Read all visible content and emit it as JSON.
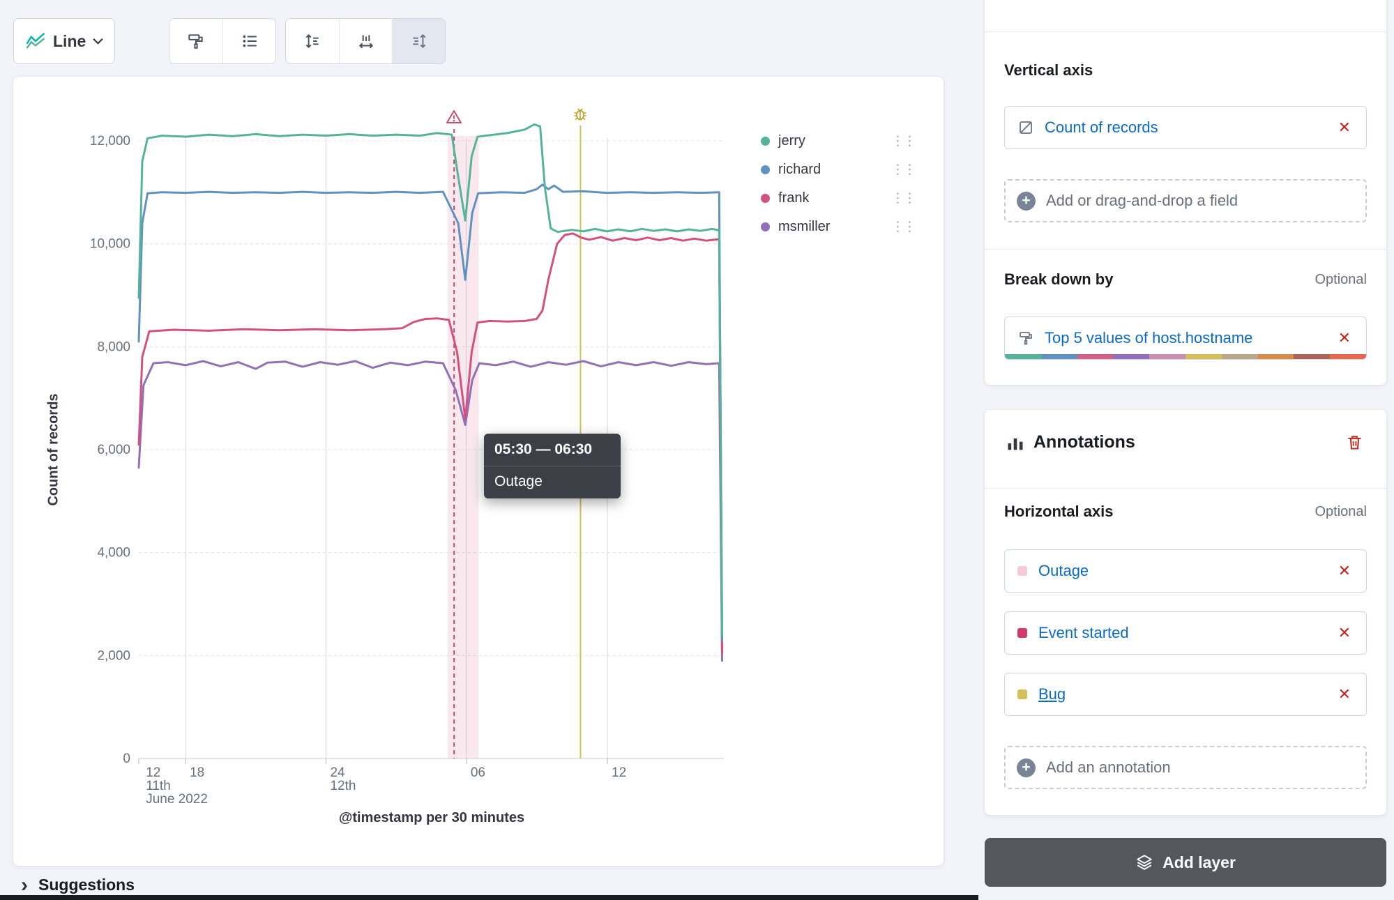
{
  "toolbar": {
    "chart_type": "Line"
  },
  "chart": {
    "tooltip": {
      "range": "05:30 — 06:30",
      "label": "Outage"
    }
  },
  "chart_data": {
    "type": "line",
    "title": "",
    "xlabel": "@timestamp per 30 minutes",
    "ylabel": "Count of records",
    "ylim": [
      0,
      12000
    ],
    "x_range_note": "x is percent 0-100 across the visible time window, 11 June 2022 ~12:00 through 12 June 2022 afternoon, bucketed per 30 minutes",
    "grid": true,
    "legend_position": "right",
    "y_ticks": [
      {
        "v": 0,
        "label": "0"
      },
      {
        "v": 2000,
        "label": "2,000"
      },
      {
        "v": 4000,
        "label": "4,000"
      },
      {
        "v": 6000,
        "label": "6,000"
      },
      {
        "v": 8000,
        "label": "8,000"
      },
      {
        "v": 10000,
        "label": "10,000"
      },
      {
        "v": 12000,
        "label": "12,000"
      }
    ],
    "x_ticks": [
      {
        "x": 0.5,
        "label": "12",
        "sub": [
          "11th",
          "June 2022"
        ]
      },
      {
        "x": 8.0,
        "label": "18",
        "sub": []
      },
      {
        "x": 32.0,
        "label": "24",
        "sub": [
          "12th"
        ]
      },
      {
        "x": 56.0,
        "label": "06",
        "sub": []
      },
      {
        "x": 80.1,
        "label": "12",
        "sub": []
      }
    ],
    "x_gridlines": [
      8.0,
      32.0,
      56.0,
      80.1
    ],
    "annotations": {
      "band": {
        "name": "Outage",
        "x0": 52.8,
        "x1": 58.1,
        "color": "#D36086",
        "opacity": 0.14
      },
      "lines": [
        {
          "name": "Event started",
          "x": 53.9,
          "color": "#b54a73",
          "dashed": true,
          "icon": "warning"
        },
        {
          "name": "Bug",
          "x": 75.5,
          "color": "#D6BF57",
          "dashed": false,
          "icon": "bug"
        }
      ]
    },
    "series": [
      {
        "name": "msmiller",
        "color": "#9170B8",
        "points": [
          [
            0,
            5650
          ],
          [
            0.8,
            7250
          ],
          [
            2.5,
            7680
          ],
          [
            5,
            7700
          ],
          [
            8,
            7640
          ],
          [
            11,
            7720
          ],
          [
            14,
            7620
          ],
          [
            17,
            7700
          ],
          [
            20,
            7570
          ],
          [
            22,
            7690
          ],
          [
            25,
            7710
          ],
          [
            28,
            7610
          ],
          [
            31,
            7700
          ],
          [
            34,
            7650
          ],
          [
            37,
            7720
          ],
          [
            40,
            7590
          ],
          [
            43,
            7690
          ],
          [
            46,
            7640
          ],
          [
            49,
            7710
          ],
          [
            52,
            7680
          ],
          [
            54.2,
            7150
          ],
          [
            55.8,
            6480
          ],
          [
            57,
            7350
          ],
          [
            58.2,
            7680
          ],
          [
            61,
            7640
          ],
          [
            64,
            7710
          ],
          [
            67,
            7610
          ],
          [
            70,
            7700
          ],
          [
            73,
            7650
          ],
          [
            76,
            7720
          ],
          [
            79,
            7620
          ],
          [
            82,
            7700
          ],
          [
            85,
            7640
          ],
          [
            88,
            7700
          ],
          [
            91,
            7630
          ],
          [
            94,
            7700
          ],
          [
            97,
            7660
          ],
          [
            99.2,
            7680
          ],
          [
            99.7,
            1900
          ]
        ]
      },
      {
        "name": "frank",
        "color": "#D2517E",
        "points": [
          [
            0,
            6100
          ],
          [
            0.6,
            7800
          ],
          [
            1.8,
            8300
          ],
          [
            6,
            8330
          ],
          [
            12,
            8310
          ],
          [
            18,
            8340
          ],
          [
            24,
            8320
          ],
          [
            30,
            8340
          ],
          [
            36,
            8320
          ],
          [
            42,
            8340
          ],
          [
            45,
            8360
          ],
          [
            47,
            8480
          ],
          [
            49,
            8540
          ],
          [
            51,
            8550
          ],
          [
            53,
            8520
          ],
          [
            54.4,
            7900
          ],
          [
            55.8,
            6600
          ],
          [
            56.9,
            7900
          ],
          [
            57.9,
            8470
          ],
          [
            60,
            8500
          ],
          [
            63,
            8490
          ],
          [
            66,
            8500
          ],
          [
            68,
            8540
          ],
          [
            69,
            8700
          ],
          [
            70,
            9300
          ],
          [
            71.5,
            10000
          ],
          [
            72.8,
            10170
          ],
          [
            74.2,
            10200
          ],
          [
            75.6,
            10120
          ],
          [
            77,
            10080
          ],
          [
            79,
            10130
          ],
          [
            81,
            10060
          ],
          [
            83,
            10110
          ],
          [
            85,
            10070
          ],
          [
            87,
            10120
          ],
          [
            89,
            10070
          ],
          [
            91,
            10110
          ],
          [
            93,
            10060
          ],
          [
            95,
            10100
          ],
          [
            97,
            10060
          ],
          [
            99.2,
            10090
          ],
          [
            99.7,
            2050
          ]
        ]
      },
      {
        "name": "richard",
        "color": "#6092C0",
        "points": [
          [
            0,
            8100
          ],
          [
            0.6,
            10400
          ],
          [
            1.5,
            10980
          ],
          [
            4,
            11000
          ],
          [
            8,
            10990
          ],
          [
            12,
            11010
          ],
          [
            16,
            10990
          ],
          [
            20,
            11000
          ],
          [
            24,
            10990
          ],
          [
            28,
            11010
          ],
          [
            32,
            10990
          ],
          [
            36,
            11000
          ],
          [
            40,
            10990
          ],
          [
            44,
            11010
          ],
          [
            48,
            10990
          ],
          [
            52,
            11010
          ],
          [
            54.6,
            10400
          ],
          [
            55.8,
            9300
          ],
          [
            57,
            10600
          ],
          [
            58,
            10980
          ],
          [
            62,
            11000
          ],
          [
            66,
            10990
          ],
          [
            68,
            11060
          ],
          [
            69,
            11150
          ],
          [
            70,
            11060
          ],
          [
            71,
            11130
          ],
          [
            72.5,
            11010
          ],
          [
            76,
            11020
          ],
          [
            80,
            10990
          ],
          [
            84,
            11000
          ],
          [
            88,
            10990
          ],
          [
            92,
            11000
          ],
          [
            96,
            10990
          ],
          [
            99.2,
            11000
          ],
          [
            99.7,
            2300
          ]
        ]
      },
      {
        "name": "jerry",
        "color": "#54B399",
        "points": [
          [
            0,
            8950
          ],
          [
            0.6,
            11600
          ],
          [
            1.5,
            12050
          ],
          [
            4,
            12100
          ],
          [
            8,
            12080
          ],
          [
            12,
            12120
          ],
          [
            16,
            12090
          ],
          [
            20,
            12130
          ],
          [
            24,
            12090
          ],
          [
            28,
            12120
          ],
          [
            32,
            12100
          ],
          [
            36,
            12130
          ],
          [
            40,
            12100
          ],
          [
            44,
            12120
          ],
          [
            48,
            12100
          ],
          [
            51,
            12150
          ],
          [
            53.5,
            12120
          ],
          [
            54.6,
            11300
          ],
          [
            55.8,
            10450
          ],
          [
            56.9,
            11700
          ],
          [
            57.9,
            12080
          ],
          [
            60,
            12110
          ],
          [
            63,
            12150
          ],
          [
            66,
            12220
          ],
          [
            67.6,
            12320
          ],
          [
            68.6,
            12280
          ],
          [
            69.4,
            11100
          ],
          [
            70.4,
            10300
          ],
          [
            71.6,
            10230
          ],
          [
            74,
            10270
          ],
          [
            76,
            10240
          ],
          [
            78,
            10290
          ],
          [
            80,
            10240
          ],
          [
            82,
            10280
          ],
          [
            84,
            10240
          ],
          [
            86,
            10290
          ],
          [
            88,
            10250
          ],
          [
            90,
            10280
          ],
          [
            92,
            10240
          ],
          [
            94,
            10280
          ],
          [
            96,
            10250
          ],
          [
            98,
            10290
          ],
          [
            99.2,
            10260
          ],
          [
            99.7,
            2400
          ]
        ]
      }
    ],
    "legend_order": [
      "jerry",
      "richard",
      "frank",
      "msmiller"
    ]
  },
  "sidebar": {
    "vertical_axis": {
      "heading": "Vertical axis",
      "field": "Count of records",
      "add_placeholder": "Add or drag-and-drop a field"
    },
    "breakdown": {
      "heading": "Break down by",
      "optional": "Optional",
      "field": "Top 5 values of host.hostname",
      "palette": [
        "#54B399",
        "#6092C0",
        "#D36086",
        "#9170B8",
        "#CA8EAE",
        "#D6BF57",
        "#B9A888",
        "#DA8B45",
        "#AA6556",
        "#E7664C"
      ]
    },
    "annotations_panel": {
      "title": "Annotations",
      "horizontal_axis": "Horizontal axis",
      "optional": "Optional",
      "items": [
        {
          "label": "Outage",
          "color": "#F5CBD9"
        },
        {
          "label": "Event started",
          "color": "#D23A6E"
        },
        {
          "label": "Bug",
          "color": "#D6BF57"
        }
      ],
      "add_label": "Add an annotation"
    },
    "add_layer": "Add layer"
  },
  "suggestions": {
    "label": "Suggestions"
  }
}
